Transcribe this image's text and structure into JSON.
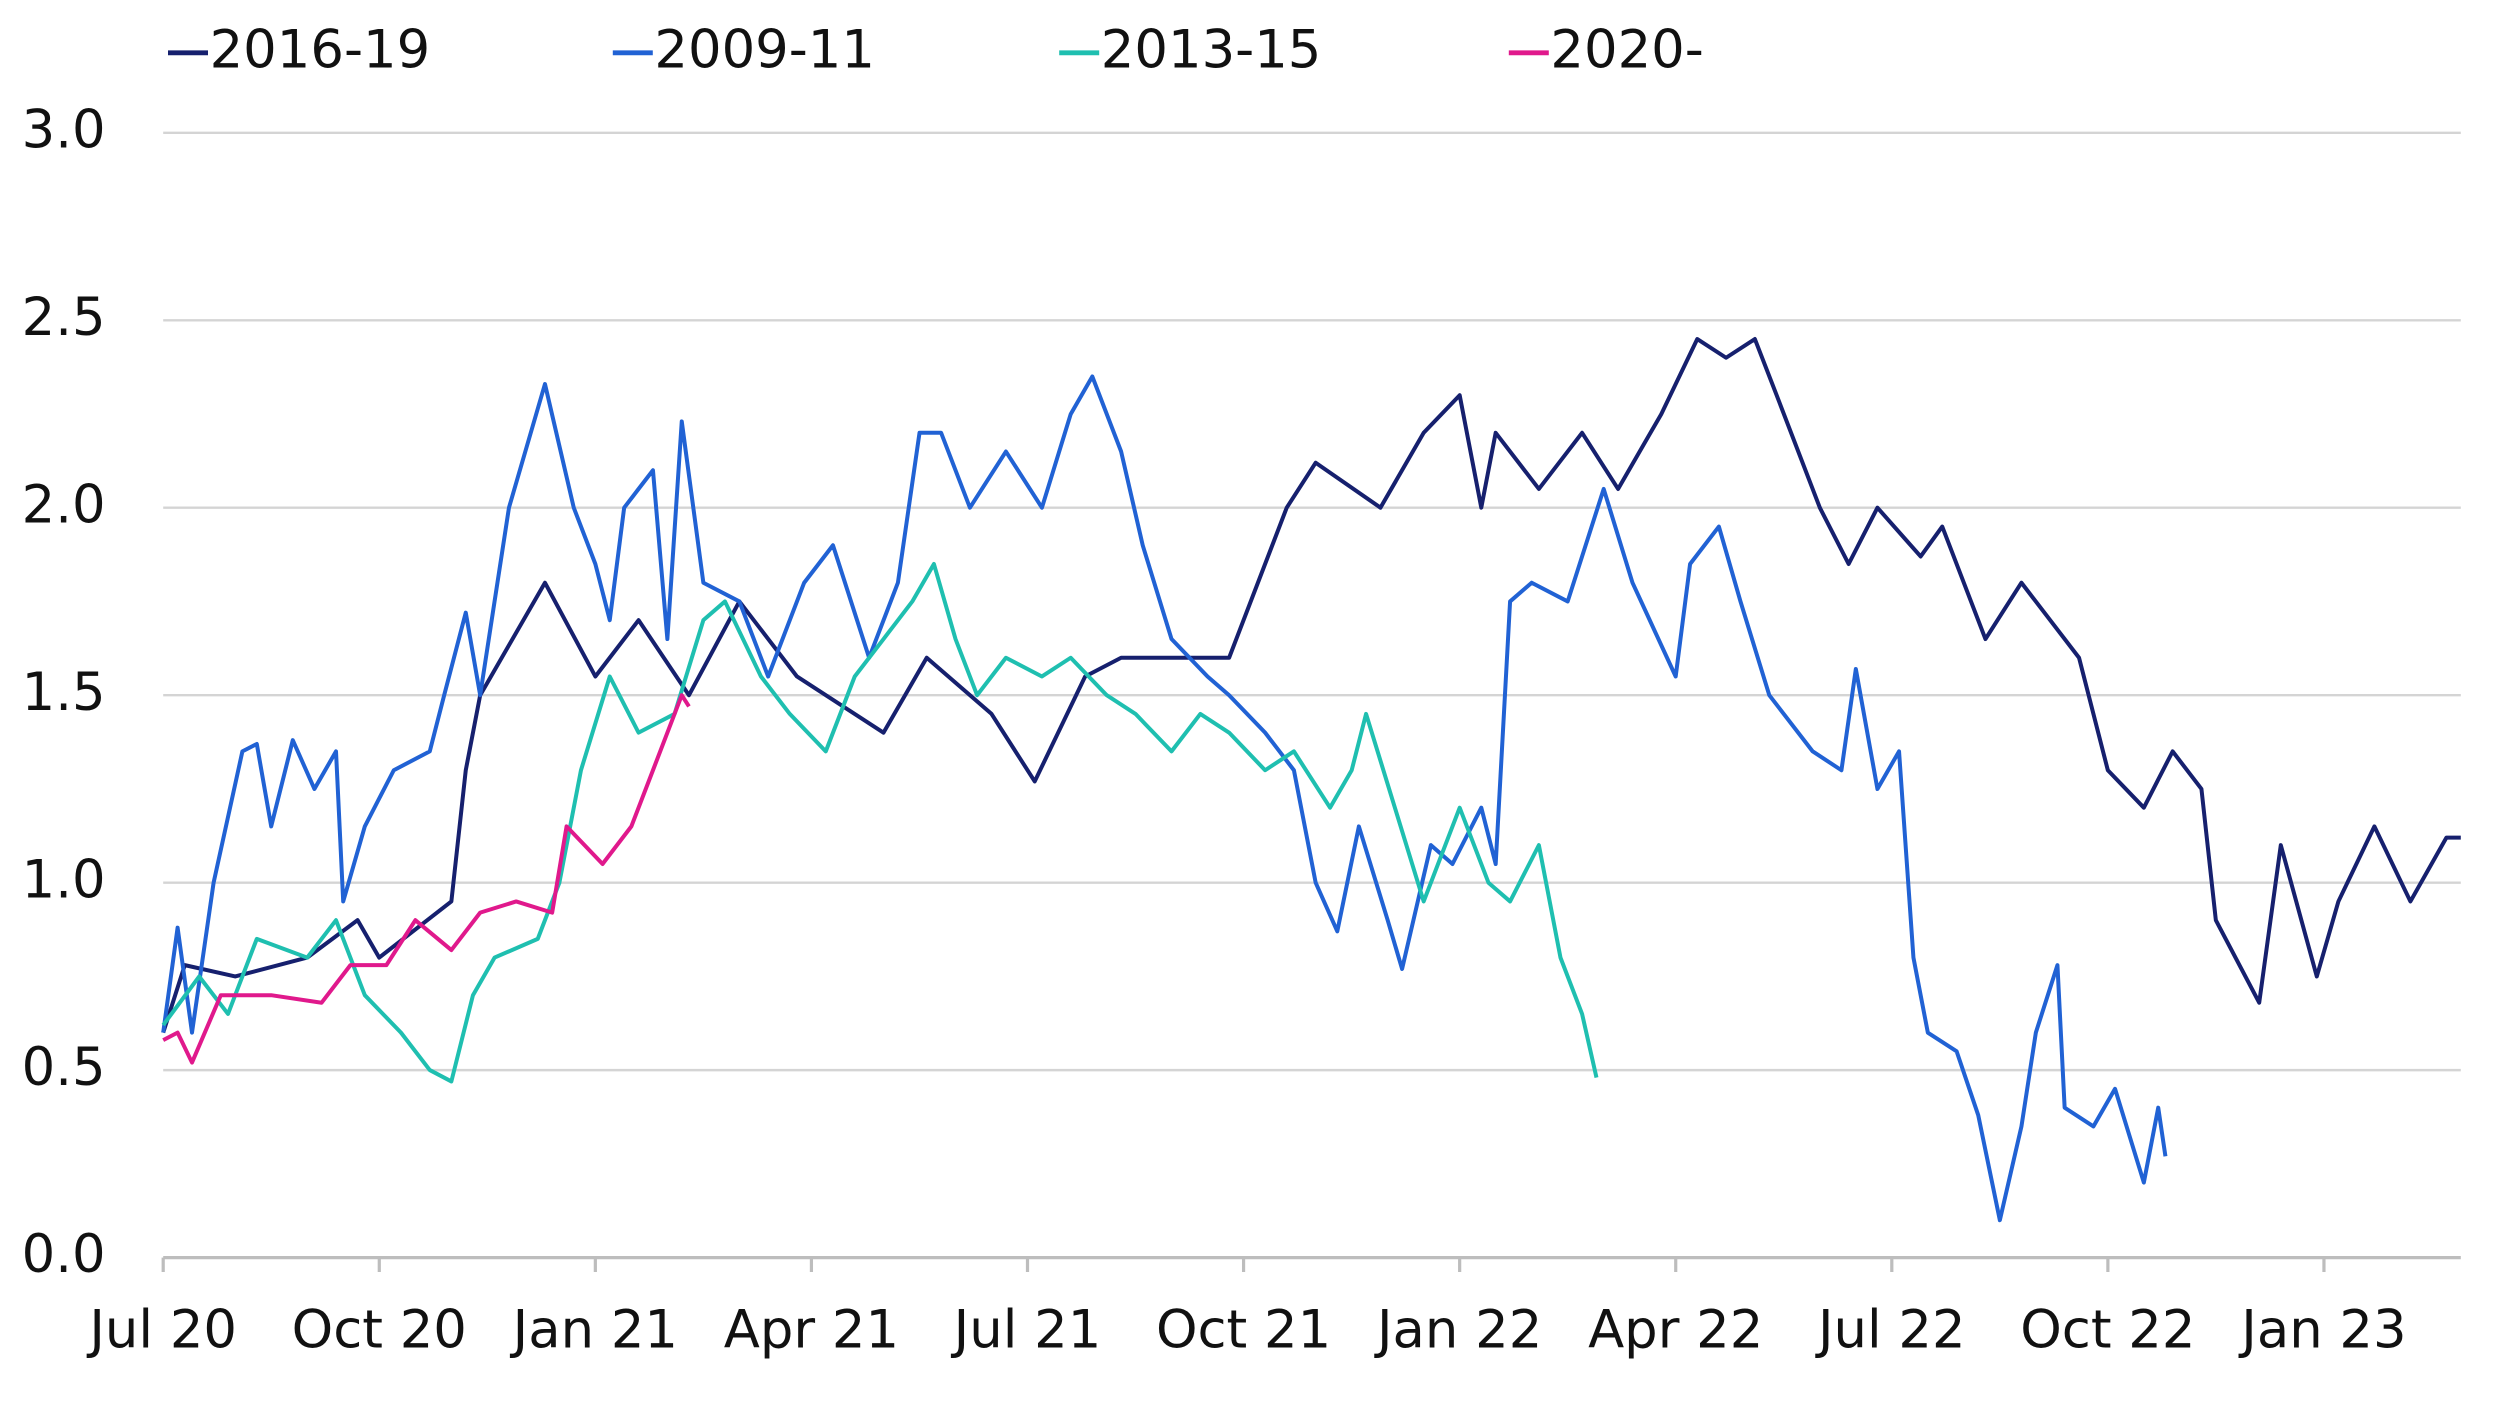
{
  "chart_data": {
    "type": "line",
    "xlim": [
      0,
      31.9
    ],
    "xticks": [
      {
        "value": 0,
        "label": "Jul 20"
      },
      {
        "value": 3,
        "label": "Oct 20"
      },
      {
        "value": 6,
        "label": "Jan 21"
      },
      {
        "value": 9,
        "label": "Apr 21"
      },
      {
        "value": 12,
        "label": "Jul 21"
      },
      {
        "value": 15,
        "label": "Oct 21"
      },
      {
        "value": 18,
        "label": "Jan 22"
      },
      {
        "value": 21,
        "label": "Apr 22"
      },
      {
        "value": 24,
        "label": "Jul 22"
      },
      {
        "value": 27,
        "label": "Oct 22"
      },
      {
        "value": 30,
        "label": "Jan 23"
      }
    ],
    "ylim": [
      0,
      3
    ],
    "yticks": [
      {
        "value": 0,
        "label": "0.0"
      },
      {
        "value": 0.5,
        "label": "0.5"
      },
      {
        "value": 1,
        "label": "1.0"
      },
      {
        "value": 1.5,
        "label": "1.5"
      },
      {
        "value": 2,
        "label": "2.0"
      },
      {
        "value": 2.5,
        "label": "2.5"
      },
      {
        "value": 3,
        "label": "3.0"
      }
    ],
    "grid": true,
    "legend": "top",
    "series": [
      {
        "name": "2016-19",
        "color": "#16206e",
        "x": [
          0,
          0.3,
          1,
          2,
          2.7,
          3,
          4,
          4.2,
          4.4,
          5.3,
          6,
          6.6,
          7.3,
          8,
          8.8,
          10,
          10.6,
          11.5,
          12.1,
          12.8,
          13.3,
          14.2,
          14.8,
          15.6,
          16,
          16.9,
          17.5,
          18,
          18.3,
          18.5,
          19.1,
          19.7,
          20.2,
          20.8,
          21.3,
          21.7,
          22.1,
          22.4,
          23,
          23.4,
          23.8,
          24.4,
          24.7,
          25.3,
          25.8,
          26.6,
          27,
          27.5,
          27.9,
          28.3,
          28.5,
          29.1,
          29.4,
          29.9,
          30.2,
          30.7,
          31.2,
          31.7,
          31.9
        ],
        "values": [
          0.6,
          0.78,
          0.75,
          0.8,
          0.9,
          0.8,
          0.95,
          1.3,
          1.5,
          1.8,
          1.55,
          1.7,
          1.5,
          1.75,
          1.55,
          1.4,
          1.6,
          1.45,
          1.27,
          1.55,
          1.6,
          1.6,
          1.6,
          2.0,
          2.12,
          2.0,
          2.2,
          2.3,
          2.0,
          2.2,
          2.05,
          2.2,
          2.05,
          2.25,
          2.45,
          2.4,
          2.45,
          2.3,
          2.0,
          1.85,
          2.0,
          1.87,
          1.95,
          1.65,
          1.8,
          1.6,
          1.3,
          1.2,
          1.35,
          1.25,
          0.9,
          0.68,
          1.1,
          0.75,
          0.95,
          1.15,
          0.95,
          1.12,
          1.12
        ]
      },
      {
        "name": "2009-11",
        "color": "#2162d4",
        "x": [
          0,
          0.2,
          0.4,
          0.7,
          1.1,
          1.3,
          1.5,
          1.8,
          2.1,
          2.4,
          2.5,
          2.8,
          3.2,
          3.7,
          3.9,
          4.2,
          4.4,
          4.8,
          5.3,
          5.7,
          6,
          6.2,
          6.4,
          6.8,
          7,
          7.2,
          7.5,
          8,
          8.4,
          8.9,
          9.3,
          9.8,
          10.2,
          10.5,
          10.8,
          11.2,
          11.7,
          12.2,
          12.6,
          12.9,
          13.3,
          13.6,
          14,
          14.5,
          14.8,
          15.3,
          15.7,
          16,
          16.3,
          16.6,
          17,
          17.2,
          17.6,
          17.9,
          18.3,
          18.5,
          18.7,
          19,
          19.5,
          20,
          20.4,
          21,
          21.2,
          21.6,
          21.9,
          22.3,
          22.9,
          23.3,
          23.5,
          23.8,
          24.1,
          24.3,
          24.5,
          24.9,
          25.2,
          25.5,
          25.8,
          26,
          26.3,
          26.4,
          26.8,
          27.1,
          27.5,
          27.7,
          27.8
        ],
        "values": [
          0.6,
          0.88,
          0.6,
          1.0,
          1.35,
          1.37,
          1.15,
          1.38,
          1.25,
          1.35,
          0.95,
          1.15,
          1.3,
          1.35,
          1.5,
          1.72,
          1.5,
          2.0,
          2.33,
          2.0,
          1.85,
          1.7,
          2.0,
          2.1,
          1.65,
          2.23,
          1.8,
          1.75,
          1.55,
          1.8,
          1.9,
          1.6,
          1.8,
          2.2,
          2.2,
          2.0,
          2.15,
          2.0,
          2.25,
          2.35,
          2.15,
          1.9,
          1.65,
          1.55,
          1.5,
          1.4,
          1.3,
          1.0,
          0.87,
          1.15,
          0.9,
          0.77,
          1.1,
          1.05,
          1.2,
          1.05,
          1.75,
          1.8,
          1.75,
          2.05,
          1.8,
          1.55,
          1.85,
          1.95,
          1.75,
          1.5,
          1.35,
          1.3,
          1.57,
          1.25,
          1.35,
          0.8,
          0.6,
          0.55,
          0.38,
          0.1,
          0.35,
          0.6,
          0.78,
          0.4,
          0.35,
          0.45,
          0.2,
          0.4,
          0.27
        ]
      },
      {
        "name": "2013-15",
        "color": "#1fbfb0",
        "x": [
          0,
          0.5,
          0.9,
          1.3,
          2,
          2.4,
          2.8,
          3.3,
          3.7,
          4,
          4.3,
          4.6,
          5.2,
          5.5,
          5.8,
          6.2,
          6.6,
          7.1,
          7.5,
          7.8,
          8.3,
          8.7,
          9.2,
          9.6,
          10,
          10.4,
          10.7,
          11,
          11.3,
          11.7,
          12.2,
          12.6,
          13.1,
          13.5,
          14,
          14.4,
          14.8,
          15.3,
          15.7,
          16.2,
          16.5,
          16.7,
          17.1,
          17.5,
          18,
          18.4,
          18.7,
          19.1,
          19.4,
          19.7,
          19.9
        ],
        "values": [
          0.62,
          0.75,
          0.65,
          0.85,
          0.8,
          0.9,
          0.7,
          0.6,
          0.5,
          0.47,
          0.7,
          0.8,
          0.85,
          1.0,
          1.3,
          1.55,
          1.4,
          1.45,
          1.7,
          1.75,
          1.55,
          1.45,
          1.35,
          1.55,
          1.65,
          1.75,
          1.85,
          1.65,
          1.5,
          1.6,
          1.55,
          1.6,
          1.5,
          1.45,
          1.35,
          1.45,
          1.4,
          1.3,
          1.35,
          1.2,
          1.3,
          1.45,
          1.2,
          0.95,
          1.2,
          1.0,
          0.95,
          1.1,
          0.8,
          0.65,
          0.48
        ]
      },
      {
        "name": "2020-",
        "color": "#e0198c",
        "x": [
          0,
          0.2,
          0.4,
          0.8,
          1.5,
          2.2,
          2.6,
          3.1,
          3.5,
          4,
          4.4,
          4.9,
          5.4,
          5.6,
          6.1,
          6.5,
          6.8,
          7.2,
          7.3
        ],
        "values": [
          0.58,
          0.6,
          0.52,
          0.7,
          0.7,
          0.68,
          0.78,
          0.78,
          0.9,
          0.82,
          0.92,
          0.95,
          0.92,
          1.15,
          1.05,
          1.15,
          1.3,
          1.5,
          1.47
        ]
      }
    ]
  }
}
